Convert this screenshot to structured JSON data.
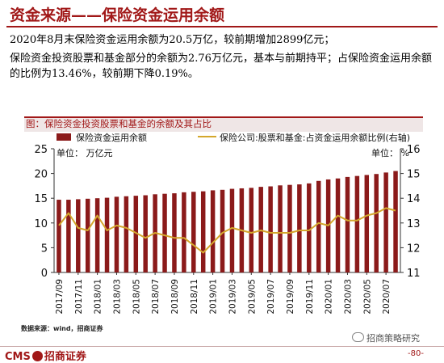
{
  "header": {
    "title": "资金来源——保险资金运用余额",
    "para1": "2020年8月末保险资金运用余额为20.5万亿，较前期增加2899亿元；",
    "para2": "保险资金投资股票和基金部分的余额为2.76万亿元，基本与前期持平；占保险资金运用余额的比例为13.46%，较前期下降0.19%。"
  },
  "figure": {
    "title": "图：保险资金投资股票和基金的余额及其占比",
    "source": "数据来源：wind，招商证券"
  },
  "footer": {
    "logo_text": "CMS",
    "logo_cn": "招商证券",
    "wechat": "招商策略研究",
    "page": "-80-"
  },
  "colors": {
    "bar": "#8b1a1a",
    "line": "#d4a72c",
    "brand": "#a11818"
  },
  "chart_data": {
    "type": "bar",
    "title": "",
    "categories": [
      "2017/09",
      "2017/10",
      "2017/11",
      "2017/12",
      "2018/01",
      "2018/02",
      "2018/03",
      "2018/04",
      "2018/05",
      "2018/06",
      "2018/07",
      "2018/08",
      "2018/09",
      "2018/10",
      "2018/11",
      "2018/12",
      "2019/01",
      "2019/02",
      "2019/03",
      "2019/04",
      "2019/05",
      "2019/06",
      "2019/07",
      "2019/08",
      "2019/09",
      "2019/10",
      "2019/11",
      "2019/12",
      "2020/01",
      "2020/02",
      "2020/03",
      "2020/04",
      "2020/05",
      "2020/06",
      "2020/07",
      "2020/08"
    ],
    "x_tick_labels": [
      "2017/09",
      "2017/11",
      "2018/01",
      "2018/03",
      "2018/05",
      "2018/07",
      "2018/09",
      "2018/11",
      "2019/01",
      "2019/03",
      "2019/05",
      "2019/07",
      "2019/09",
      "2019/11",
      "2020/01",
      "2020/03",
      "2020/05",
      "2020/07"
    ],
    "series": [
      {
        "name": "保险资金运用余额",
        "axis": "left",
        "type": "bar",
        "values": [
          14.7,
          14.7,
          14.8,
          14.9,
          15.0,
          15.1,
          15.3,
          15.4,
          15.5,
          15.6,
          15.8,
          15.9,
          16.0,
          16.2,
          16.3,
          16.4,
          16.6,
          16.7,
          16.9,
          17.0,
          17.1,
          17.3,
          17.4,
          17.6,
          17.7,
          17.8,
          18.0,
          18.5,
          18.8,
          19.0,
          19.3,
          19.5,
          19.7,
          19.9,
          20.2,
          20.5
        ]
      },
      {
        "name": "保险公司:股票和基金:占资金运用余额比例(右轴)",
        "axis": "right",
        "type": "line",
        "values": [
          12.9,
          13.4,
          12.8,
          12.7,
          13.3,
          12.7,
          12.9,
          12.8,
          12.6,
          12.4,
          12.6,
          12.5,
          12.4,
          12.4,
          12.1,
          11.8,
          12.2,
          12.6,
          12.8,
          12.7,
          12.6,
          12.7,
          12.6,
          12.6,
          12.6,
          12.7,
          12.7,
          13.0,
          12.9,
          13.3,
          13.1,
          13.1,
          13.3,
          13.4,
          13.6,
          13.5
        ]
      }
    ],
    "ylabel_left": "单位：  万亿元",
    "ylabel_right": "单位：  %",
    "ylim_left": [
      0,
      25
    ],
    "yticks_left": [
      "0",
      "5",
      "10",
      "15",
      "20",
      "25"
    ],
    "ylim_right": [
      11,
      16
    ],
    "yticks_right": [
      "11",
      "12",
      "13",
      "14",
      "15",
      "16"
    ],
    "grid": false,
    "legend_position": "top"
  }
}
